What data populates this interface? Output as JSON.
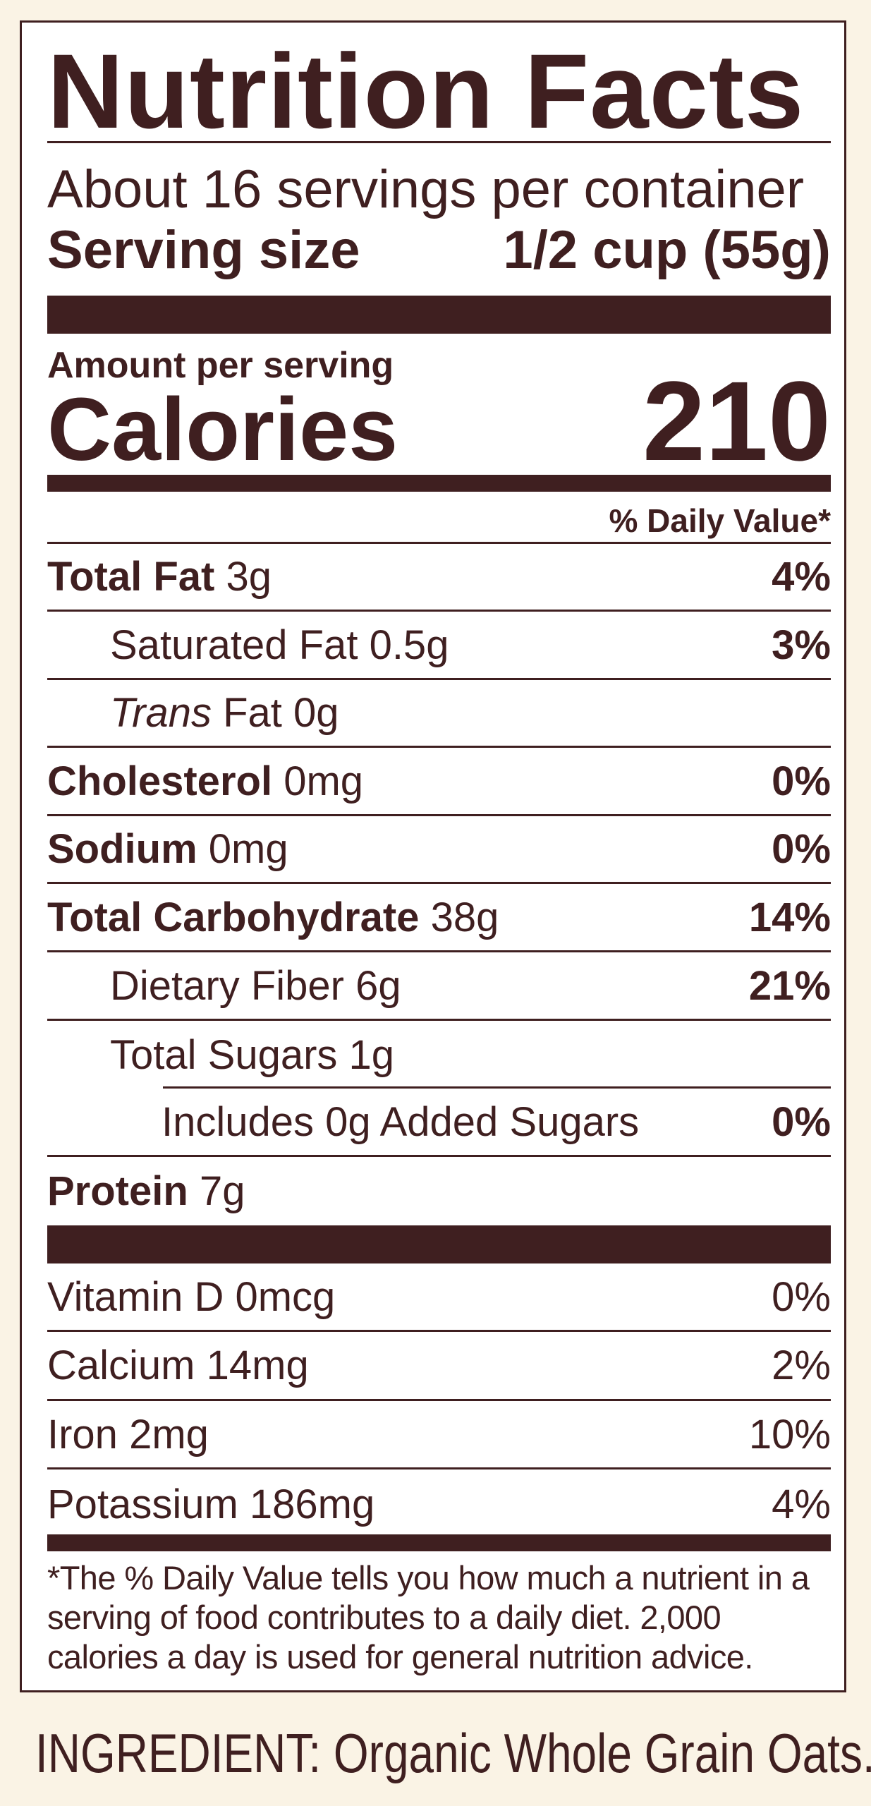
{
  "label": {
    "title": "Nutrition Facts",
    "servings_per_container": "About 16 servings per container",
    "serving_size_label": "Serving size",
    "serving_size_value": "1/2 cup (55g)",
    "amount_per_serving": "Amount per serving",
    "calories_label": "Calories",
    "calories_value": "210",
    "daily_value_header": "% Daily Value*",
    "nutrients": [
      {
        "name": "Total Fat",
        "amount": "3g",
        "dv": "4%",
        "level": 0
      },
      {
        "name": "Saturated Fat",
        "amount": "0.5g",
        "dv": "3%",
        "level": 1
      },
      {
        "name_italic": "Trans",
        "name": "Fat",
        "amount": "0g",
        "dv": "",
        "level": 1
      },
      {
        "name": "Cholesterol",
        "amount": "0mg",
        "dv": "0%",
        "level": 0
      },
      {
        "name": "Sodium",
        "amount": "0mg",
        "dv": "0%",
        "level": 0
      },
      {
        "name": "Total Carbohydrate",
        "amount": "38g",
        "dv": "14%",
        "level": 0
      },
      {
        "name": "Dietary Fiber",
        "amount": "6g",
        "dv": "21%",
        "level": 1
      },
      {
        "name": "Total Sugars",
        "amount": "1g",
        "dv": "",
        "level": 1
      },
      {
        "name": "Includes 0g Added Sugars",
        "amount": "",
        "dv": "0%",
        "level": 2
      },
      {
        "name": "Protein",
        "amount": "7g",
        "dv": "",
        "level": 0
      }
    ],
    "vitamins": [
      {
        "name": "Vitamin D",
        "amount": "0mcg",
        "dv": "0%"
      },
      {
        "name": "Calcium",
        "amount": "14mg",
        "dv": "2%"
      },
      {
        "name": "Iron",
        "amount": "2mg",
        "dv": "10%"
      },
      {
        "name": "Potassium",
        "amount": "186mg",
        "dv": "4%"
      }
    ],
    "footnote": "*The % Daily Value tells you how much a nutrient in a serving of food contributes to a daily diet. 2,000 calories a day is used for general nutrition advice."
  },
  "ingredients": "INGREDIENT: Organic Whole Grain Oats.",
  "colors": {
    "text": "#3f1f20",
    "background": "#faf3e5",
    "panel": "#ffffff"
  }
}
